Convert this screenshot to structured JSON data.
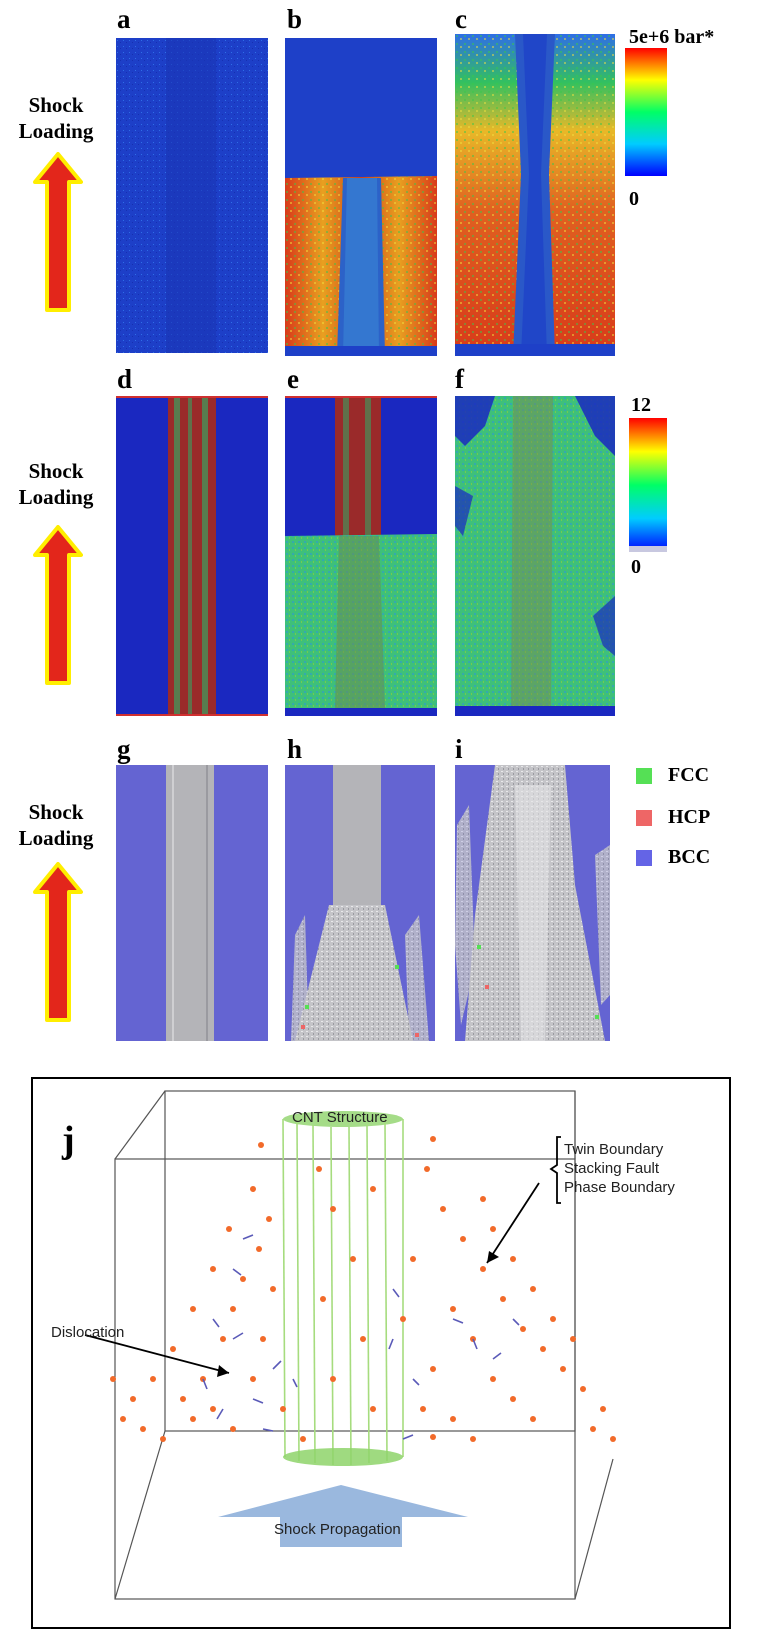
{
  "figure": {
    "shock_loading_label": [
      "Shock",
      "Loading"
    ],
    "panels": {
      "a": "a",
      "b": "b",
      "c": "c",
      "d": "d",
      "e": "e",
      "f": "f",
      "g": "g",
      "h": "h",
      "i": "i",
      "j": "j"
    },
    "pressure_scale": {
      "max": "5e+6 bar*",
      "min": "0",
      "colors": [
        "#ff0000",
        "#ffff00",
        "#00ff66",
        "#00ccff",
        "#0000ff"
      ]
    },
    "coordination_scale": {
      "max": "12",
      "min": "0",
      "colors": [
        "#ff0000",
        "#ffff00",
        "#00ff66",
        "#00ccff",
        "#0000ff"
      ]
    },
    "structure_legend": [
      {
        "label": "FCC",
        "color": "#55e055"
      },
      {
        "label": "HCP",
        "color": "#ee6666"
      },
      {
        "label": "BCC",
        "color": "#6464e6"
      }
    ],
    "panel_j": {
      "cnt_label": "CNT Structure",
      "boundary_labels": [
        "Twin Boundary",
        "Stacking Fault",
        "Phase Boundary"
      ],
      "dislocation_label": "Dislocation",
      "shock_propagation_label": "Shock Propagation"
    }
  }
}
